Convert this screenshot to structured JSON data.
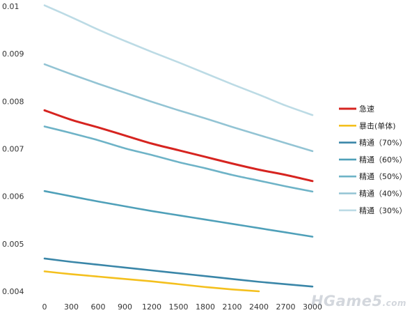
{
  "chart_data": {
    "type": "line",
    "x": [
      0,
      300,
      600,
      900,
      1200,
      1500,
      1800,
      2100,
      2400,
      2700,
      3000
    ],
    "xticks": [
      "0",
      "300",
      "600",
      "900",
      "1200",
      "1500",
      "1800",
      "2100",
      "2400",
      "2700",
      "3000"
    ],
    "yticks": [
      "0.004",
      "0.005",
      "0.006",
      "0.007",
      "0.008",
      "0.009",
      "0.01"
    ],
    "ylim": [
      0.004,
      0.01
    ],
    "xlim": [
      0,
      3000
    ],
    "grid": false,
    "legend_position": "right",
    "series": [
      {
        "name": "急速",
        "color": "#d62420",
        "values": [
          0.00781,
          0.00761,
          0.00745,
          0.00728,
          0.00711,
          0.00697,
          0.00683,
          0.00669,
          0.00656,
          0.00645,
          0.00632
        ]
      },
      {
        "name": "暴击(单体)",
        "color": "#f4c01e",
        "values": [
          0.00442,
          0.00436,
          0.00431,
          0.00426,
          0.00421,
          0.00415,
          0.00409,
          0.00404,
          0.004,
          null,
          null
        ]
      },
      {
        "name": "精通（70%）",
        "color": "#3a86a8",
        "values": [
          0.00469,
          0.00462,
          0.00456,
          0.0045,
          0.00444,
          0.00438,
          0.00432,
          0.00426,
          0.0042,
          0.00415,
          0.0041
        ]
      },
      {
        "name": "精通（60%）",
        "color": "#4fa0b9",
        "values": [
          0.00611,
          0.006,
          0.00589,
          0.00579,
          0.00569,
          0.0056,
          0.00551,
          0.00542,
          0.00533,
          0.00524,
          0.00515
        ]
      },
      {
        "name": "精通（50%）",
        "color": "#6eb3c7",
        "values": [
          0.00747,
          0.00733,
          0.00718,
          0.00701,
          0.00687,
          0.00672,
          0.00659,
          0.00645,
          0.00633,
          0.00621,
          0.0061
        ]
      },
      {
        "name": "精通（40%）",
        "color": "#93c4d4",
        "values": [
          0.00878,
          0.00857,
          0.00837,
          0.00818,
          0.00799,
          0.00781,
          0.00764,
          0.00746,
          0.00729,
          0.00712,
          0.00695
        ]
      },
      {
        "name": "精通（30%）",
        "color": "#bcdbe5",
        "values": [
          0.01002,
          0.00977,
          0.00951,
          0.00927,
          0.00904,
          0.00882,
          0.00859,
          0.00836,
          0.00814,
          0.00791,
          0.00771
        ]
      }
    ]
  },
  "watermark": {
    "main": "HGame5",
    "suffix": ".com"
  }
}
